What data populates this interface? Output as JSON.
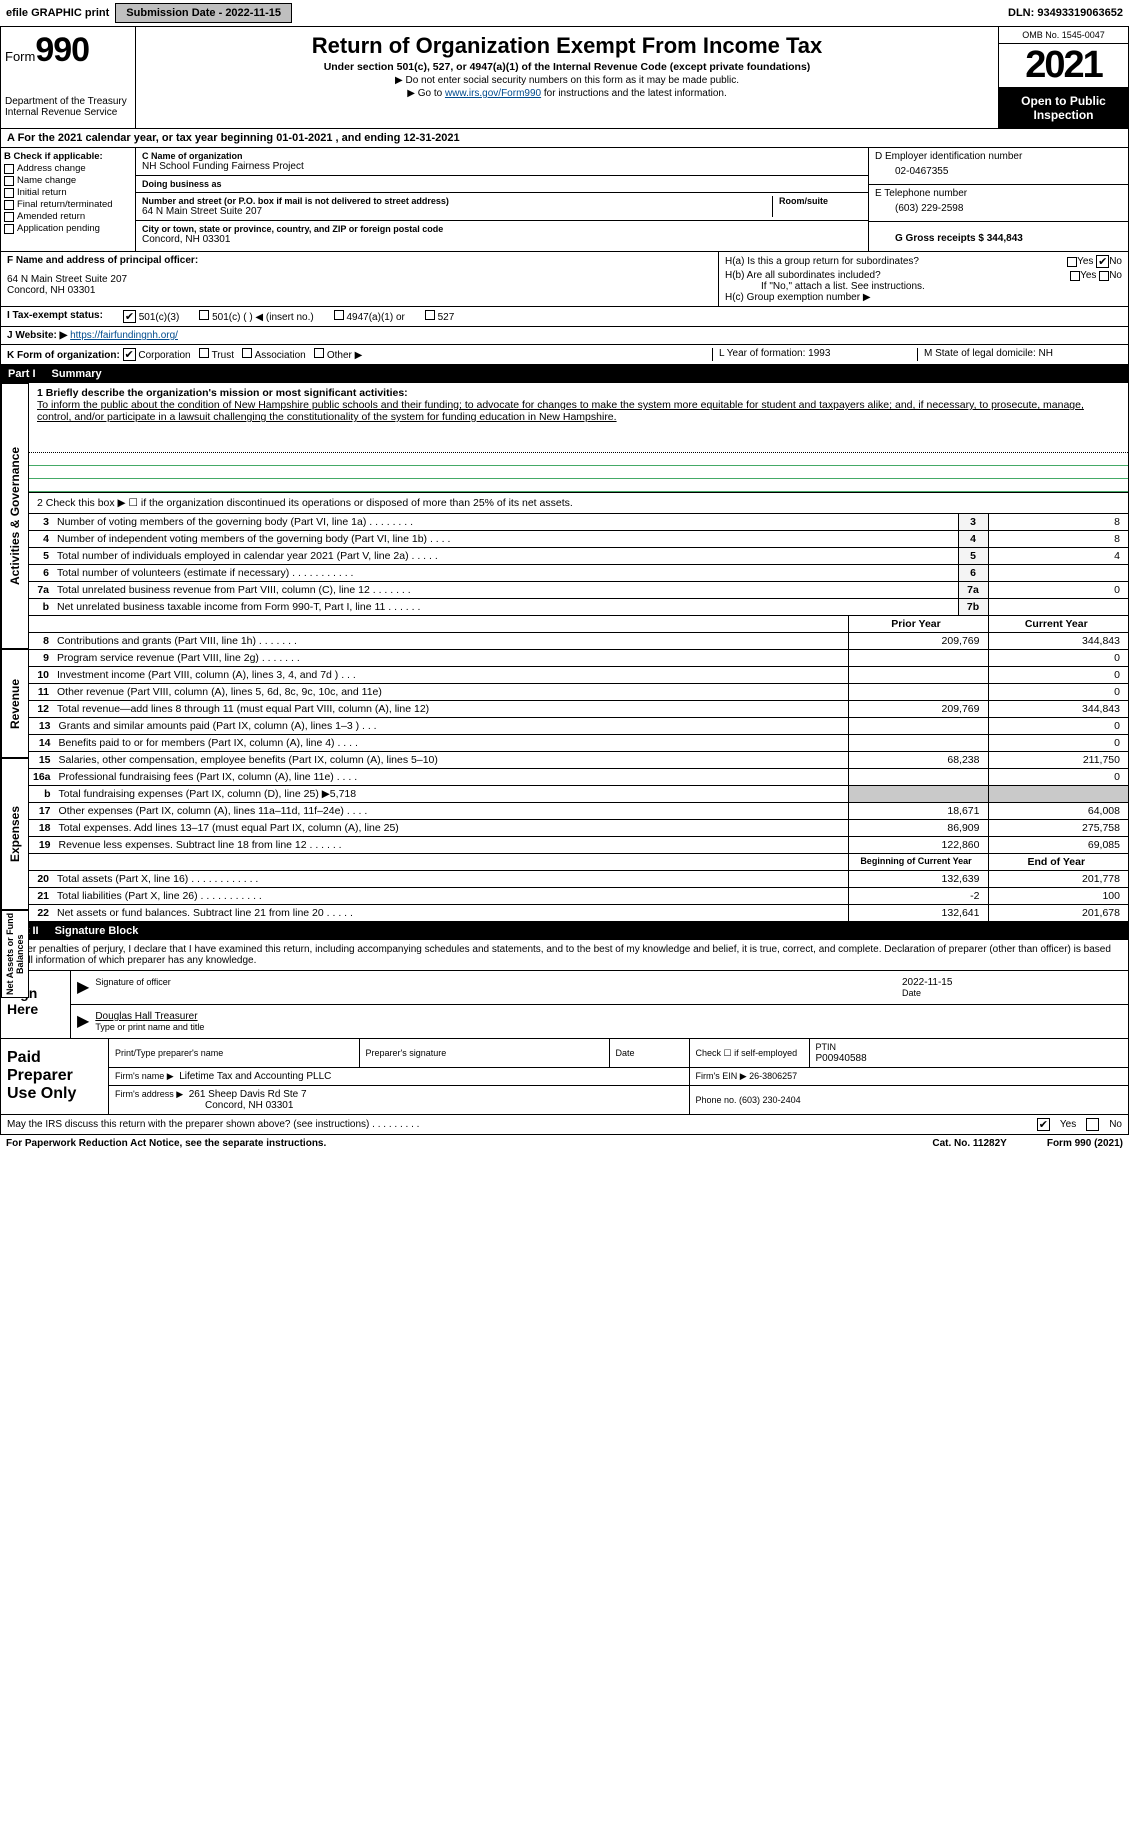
{
  "topbar": {
    "efile": "efile GRAPHIC print",
    "submission_label": "Submission Date - 2022-11-15",
    "dln": "DLN: 93493319063652"
  },
  "header": {
    "form_prefix": "Form",
    "form_num": "990",
    "dept": "Department of the Treasury",
    "irs": "Internal Revenue Service",
    "title": "Return of Organization Exempt From Income Tax",
    "subtitle": "Under section 501(c), 527, or 4947(a)(1) of the Internal Revenue Code (except private foundations)",
    "note1": "▶ Do not enter social security numbers on this form as it may be made public.",
    "note2_pre": "▶ Go to ",
    "note2_link": "www.irs.gov/Form990",
    "note2_post": " for instructions and the latest information.",
    "omb": "OMB No. 1545-0047",
    "year": "2021",
    "open_public": "Open to Public Inspection"
  },
  "period": "A For the 2021 calendar year, or tax year beginning 01-01-2021    , and ending 12-31-2021",
  "box_b": {
    "label": "B Check if applicable:",
    "items": [
      "Address change",
      "Name change",
      "Initial return",
      "Final return/terminated",
      "Amended return",
      "Application pending"
    ]
  },
  "box_c": {
    "label_name": "C Name of organization",
    "org_name": "NH School Funding Fairness Project",
    "dba_label": "Doing business as",
    "dba": "",
    "addr_label": "Number and street (or P.O. box if mail is not delivered to street address)",
    "room_label": "Room/suite",
    "street": "64 N Main Street Suite 207",
    "city_label": "City or town, state or province, country, and ZIP or foreign postal code",
    "city": "Concord, NH  03301"
  },
  "box_d": {
    "label": "D Employer identification number",
    "ein": "02-0467355",
    "tel_label": "E Telephone number",
    "tel": "(603) 229-2598",
    "gross_label": "G Gross receipts $ 344,843"
  },
  "box_f": {
    "label": "F Name and address of principal officer:",
    "addr1": "64 N Main Street Suite 207",
    "addr2": "Concord, NH  03301"
  },
  "box_h": {
    "ha": "H(a)  Is this a group return for subordinates?",
    "hb": "H(b)  Are all subordinates included?",
    "hb_note": "If \"No,\" attach a list. See instructions.",
    "hc": "H(c)  Group exemption number ▶",
    "yes": "Yes",
    "no": "No"
  },
  "box_i": {
    "label": "I   Tax-exempt status:",
    "o1": "501(c)(3)",
    "o2": "501(c) (   ) ◀ (insert no.)",
    "o3": "4947(a)(1) or",
    "o4": "527"
  },
  "box_j": {
    "label": "J   Website: ▶",
    "url": "https://fairfundingnh.org/"
  },
  "box_k": {
    "label": "K Form of organization:",
    "o1": "Corporation",
    "o2": "Trust",
    "o3": "Association",
    "o4": "Other ▶",
    "l_label": "L Year of formation: 1993",
    "m_label": "M State of legal domicile: NH"
  },
  "part1": {
    "title": "Part I",
    "subtitle": "Summary",
    "vtab1": "Activities & Governance",
    "vtab2": "Revenue",
    "vtab3": "Expenses",
    "vtab4": "Net Assets or Fund Balances",
    "line1_label": "1  Briefly describe the organization's mission or most significant activities:",
    "mission": "To inform the public about the condition of New Hampshire public schools and their funding; to advocate for changes to make the system more equitable for student and taxpayers alike; and, if necessary, to prosecute, manage, control, and/or participate in a lawsuit challenging the constitutionality of the system for funding education in New Hampshire.",
    "line2": "2    Check this box ▶ ☐ if the organization discontinued its operations or disposed of more than 25% of its net assets.",
    "rows_gov": [
      {
        "n": "3",
        "desc": "Number of voting members of the governing body (Part VI, line 1a)  .    .    .    .    .    .    .    .",
        "box": "3",
        "val": "8"
      },
      {
        "n": "4",
        "desc": "Number of independent voting members of the governing body (Part VI, line 1b)  .    .    .    .",
        "box": "4",
        "val": "8"
      },
      {
        "n": "5",
        "desc": "Total number of individuals employed in calendar year 2021 (Part V, line 2a)  .    .    .    .    .",
        "box": "5",
        "val": "4"
      },
      {
        "n": "6",
        "desc": "Total number of volunteers (estimate if necessary)   .    .    .    .    .    .    .    .    .    .    .",
        "box": "6",
        "val": ""
      },
      {
        "n": "7a",
        "desc": "Total unrelated business revenue from Part VIII, column (C), line 12  .    .    .    .    .    .    .",
        "box": "7a",
        "val": "0"
      },
      {
        "n": "b",
        "desc": "Net unrelated business taxable income from Form 990-T, Part I, line 11  .    .    .    .    .    .",
        "box": "7b",
        "val": ""
      }
    ],
    "col_py": "Prior Year",
    "col_cy": "Current Year",
    "rows_rev": [
      {
        "n": "8",
        "desc": "Contributions and grants (Part VIII, line 1h)   .    .    .    .    .    .    .",
        "py": "209,769",
        "cy": "344,843"
      },
      {
        "n": "9",
        "desc": "Program service revenue (Part VIII, line 2g)  .    .    .    .    .    .    .",
        "py": "",
        "cy": "0"
      },
      {
        "n": "10",
        "desc": "Investment income (Part VIII, column (A), lines 3, 4, and 7d )  .    .    .",
        "py": "",
        "cy": "0"
      },
      {
        "n": "11",
        "desc": "Other revenue (Part VIII, column (A), lines 5, 6d, 8c, 9c, 10c, and 11e)",
        "py": "",
        "cy": "0"
      },
      {
        "n": "12",
        "desc": "Total revenue—add lines 8 through 11 (must equal Part VIII, column (A), line 12)",
        "py": "209,769",
        "cy": "344,843"
      }
    ],
    "rows_exp": [
      {
        "n": "13",
        "desc": "Grants and similar amounts paid (Part IX, column (A), lines 1–3 )  .    .    .",
        "py": "",
        "cy": "0"
      },
      {
        "n": "14",
        "desc": "Benefits paid to or for members (Part IX, column (A), line 4)  .    .    .    .",
        "py": "",
        "cy": "0"
      },
      {
        "n": "15",
        "desc": "Salaries, other compensation, employee benefits (Part IX, column (A), lines 5–10)",
        "py": "68,238",
        "cy": "211,750"
      },
      {
        "n": "16a",
        "desc": "Professional fundraising fees (Part IX, column (A), line 11e)  .    .    .    .",
        "py": "",
        "cy": "0"
      },
      {
        "n": "b",
        "desc": "Total fundraising expenses (Part IX, column (D), line 25) ▶5,718",
        "py": "shaded",
        "cy": "shaded"
      },
      {
        "n": "17",
        "desc": "Other expenses (Part IX, column (A), lines 11a–11d, 11f–24e)  .    .    .    .",
        "py": "18,671",
        "cy": "64,008"
      },
      {
        "n": "18",
        "desc": "Total expenses. Add lines 13–17 (must equal Part IX, column (A), line 25)",
        "py": "86,909",
        "cy": "275,758"
      },
      {
        "n": "19",
        "desc": "Revenue less expenses. Subtract line 18 from line 12  .    .    .    .    .    .",
        "py": "122,860",
        "cy": "69,085"
      }
    ],
    "col_bcy": "Beginning of Current Year",
    "col_eoy": "End of Year",
    "rows_na": [
      {
        "n": "20",
        "desc": "Total assets (Part X, line 16)  .    .    .    .    .    .    .    .    .    .    .    .",
        "py": "132,639",
        "cy": "201,778"
      },
      {
        "n": "21",
        "desc": "Total liabilities (Part X, line 26)  .    .    .    .    .    .    .    .    .    .    .",
        "py": "-2",
        "cy": "100"
      },
      {
        "n": "22",
        "desc": "Net assets or fund balances. Subtract line 21 from line 20  .    .    .    .    .",
        "py": "132,641",
        "cy": "201,678"
      }
    ]
  },
  "part2": {
    "title": "Part II",
    "subtitle": "Signature Block",
    "declaration": "Under penalties of perjury, I declare that I have examined this return, including accompanying schedules and statements, and to the best of my knowledge and belief, it is true, correct, and complete. Declaration of preparer (other than officer) is based on all information of which preparer has any knowledge.",
    "sign_here": "Sign Here",
    "sig_officer": "Signature of officer",
    "sig_date": "Date",
    "sig_date_val": "2022-11-15",
    "name_title": "Douglas Hall Treasurer",
    "name_caption": "Type or print name and title",
    "paid_label": "Paid Preparer Use Only",
    "pp_name_label": "Print/Type preparer's name",
    "pp_sig_label": "Preparer's signature",
    "pp_date_label": "Date",
    "pp_check_label": "Check ☐ if self-employed",
    "pp_ptin_label": "PTIN",
    "pp_ptin": "P00940588",
    "firm_name_label": "Firm's name    ▶",
    "firm_name": "Lifetime Tax and Accounting PLLC",
    "firm_ein_label": "Firm's EIN ▶ 26-3806257",
    "firm_addr_label": "Firm's address ▶",
    "firm_addr1": "261 Sheep Davis Rd Ste 7",
    "firm_addr2": "Concord, NH  03301",
    "firm_phone": "Phone no. (603) 230-2404",
    "may_irs": "May the IRS discuss this return with the preparer shown above? (see instructions)  .    .    .    .    .    .    .    .    .",
    "yes": "Yes",
    "no": "No"
  },
  "footer": {
    "pra": "For Paperwork Reduction Act Notice, see the separate instructions.",
    "cat": "Cat. No. 11282Y",
    "form": "Form 990 (2021)"
  }
}
